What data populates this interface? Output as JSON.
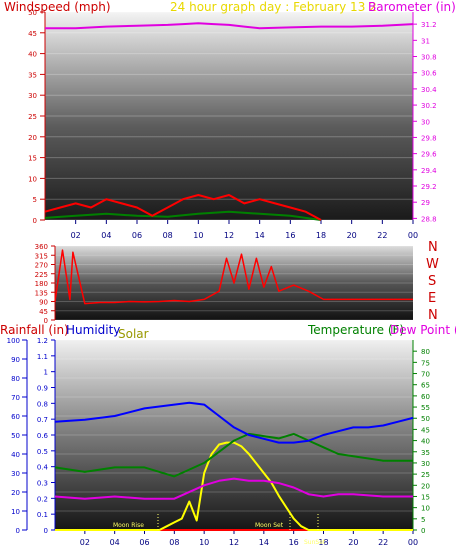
{
  "panel1": {
    "title_left": "Windspeed (mph)",
    "title_center": "24 hour graph day : February 13 2",
    "title_right": "Barometer (in)",
    "colors": {
      "wind": "#ff0000",
      "gust": "#008000",
      "baro": "#e000e0"
    }
  },
  "panel2": {
    "directions": [
      "N",
      "W",
      "S",
      "E",
      "N"
    ]
  },
  "panel3": {
    "title_rain": "Rainfall (in)",
    "title_hum": "Humidity",
    "title_solar": "Solar",
    "title_temp": "Temperature (F)",
    "title_dew": "Dew Point (",
    "moon_rise": "Moon Rise",
    "moon_set": "Moon Set",
    "sunset": "SunSet",
    "colors": {
      "humidity": "#0000ff",
      "temperature": "#008000",
      "dewpoint": "#e000e0",
      "solar": "#ffff00",
      "rain": "#ff0000"
    }
  },
  "chart_data": [
    {
      "type": "line",
      "title": "24 hour graph day : February 13 2",
      "xlabel": "",
      "ylabel": "Windspeed (mph)",
      "y2label": "Barometer (in)",
      "x_ticks": [
        "02",
        "04",
        "06",
        "08",
        "10",
        "12",
        "14",
        "16",
        "18",
        "20",
        "22",
        "00"
      ],
      "xlim": [
        0,
        24
      ],
      "ylim": [
        0,
        50
      ],
      "y_ticks": [
        0,
        5,
        10,
        15,
        20,
        25,
        30,
        35,
        40,
        45,
        50
      ],
      "y2lim": [
        28.78,
        31.35
      ],
      "y2_ticks": [
        "28.8",
        "29",
        "29.2",
        "29.4",
        "29.6",
        "29.8",
        "30",
        "30.2",
        "30.4",
        "30.6",
        "30.8",
        "31",
        "31.2"
      ],
      "series": [
        {
          "name": "Barometer",
          "axis": "y2",
          "x": [
            0,
            2,
            4,
            6,
            8,
            9,
            10,
            11,
            12,
            13,
            14,
            16,
            18,
            20,
            22,
            24
          ],
          "values": [
            31.15,
            31.15,
            31.17,
            31.18,
            31.19,
            31.2,
            31.21,
            31.2,
            31.19,
            31.17,
            31.15,
            31.16,
            31.17,
            31.17,
            31.18,
            31.2
          ]
        },
        {
          "name": "Windspeed",
          "axis": "y",
          "x": [
            0,
            1,
            2,
            3,
            4,
            5,
            6,
            7,
            8,
            9,
            10,
            11,
            12,
            13,
            14,
            15,
            16,
            17,
            18
          ],
          "values": [
            2,
            3,
            4,
            3,
            5,
            4,
            3,
            1,
            3,
            5,
            6,
            5,
            6,
            4,
            5,
            4,
            3,
            2,
            0
          ]
        },
        {
          "name": "Gust",
          "axis": "y",
          "x": [
            0,
            2,
            4,
            6,
            8,
            10,
            12,
            14,
            16,
            18
          ],
          "values": [
            0.5,
            1,
            1.5,
            1,
            0.8,
            1.5,
            2,
            1.5,
            1,
            0
          ]
        }
      ]
    },
    {
      "type": "line",
      "ylabel": "Wind direction",
      "xlim": [
        0,
        24
      ],
      "ylim": [
        0,
        360
      ],
      "y_ticks": [
        0,
        45,
        90,
        135,
        180,
        225,
        270,
        315,
        360
      ],
      "series": [
        {
          "name": "Wind direction",
          "x": [
            0,
            0.5,
            1,
            1.2,
            2,
            3,
            4,
            5,
            6,
            7,
            8,
            9,
            10,
            11,
            11.5,
            12,
            12.5,
            13,
            13.5,
            14,
            14.5,
            15,
            16,
            17,
            18,
            20,
            22,
            24
          ],
          "values": [
            90,
            340,
            100,
            330,
            80,
            85,
            85,
            90,
            88,
            90,
            95,
            90,
            100,
            140,
            300,
            180,
            320,
            150,
            300,
            160,
            260,
            140,
            170,
            140,
            100,
            100,
            100,
            100
          ]
        }
      ]
    },
    {
      "type": "line",
      "xlim": [
        0,
        24
      ],
      "x_ticks": [
        "02",
        "04",
        "06",
        "08",
        "10",
        "12",
        "14",
        "16",
        "18",
        "20",
        "22",
        "00"
      ],
      "ylim": [
        0,
        100
      ],
      "y_ticks": [
        0,
        10,
        20,
        30,
        40,
        50,
        60,
        70,
        80,
        90,
        100
      ],
      "y2lim": [
        0,
        1.2
      ],
      "y2_ticks": [
        "0",
        "0.1",
        "0.2",
        "0.3",
        "0.4",
        "0.5",
        "0.6",
        "0.7",
        "0.8",
        "0.9",
        "1",
        "1.1",
        "1.2"
      ],
      "y3lim": [
        0,
        85
      ],
      "y3_ticks": [
        0,
        5,
        10,
        15,
        20,
        25,
        30,
        35,
        40,
        45,
        50,
        55,
        60,
        65,
        70,
        75,
        80
      ],
      "series": [
        {
          "name": "Humidity",
          "axis": "y",
          "x": [
            0,
            2,
            4,
            6,
            8,
            9,
            10,
            11,
            12,
            13,
            14,
            15,
            16,
            17,
            18,
            19,
            20,
            21,
            22,
            23,
            24
          ],
          "values": [
            57,
            58,
            60,
            64,
            66,
            67,
            66,
            60,
            54,
            50,
            48,
            46,
            46,
            47,
            50,
            52,
            54,
            54,
            55,
            57,
            59
          ]
        },
        {
          "name": "Temperature",
          "axis": "y3",
          "x": [
            0,
            2,
            4,
            6,
            8,
            10,
            11,
            12,
            13,
            14,
            15,
            16,
            17,
            18,
            19,
            20,
            22,
            24
          ],
          "values": [
            28,
            26,
            28,
            28,
            24,
            30,
            35,
            40,
            43,
            42,
            41,
            43,
            40,
            37,
            34,
            33,
            31,
            31
          ]
        },
        {
          "name": "Dew Point",
          "axis": "y3",
          "x": [
            0,
            2,
            4,
            6,
            8,
            10,
            11,
            12,
            13,
            14,
            15,
            16,
            17,
            18,
            19,
            20,
            22,
            24
          ],
          "values": [
            15,
            14,
            15,
            14,
            14,
            20,
            22,
            23,
            22,
            22,
            21,
            19,
            16,
            15,
            16,
            16,
            15,
            15
          ]
        },
        {
          "name": "Solar",
          "axis": "y",
          "x": [
            0,
            7,
            7.5,
            8,
            8.5,
            9,
            9.5,
            10,
            10.5,
            11,
            11.5,
            12,
            12.5,
            13,
            13.5,
            14,
            14.5,
            15,
            15.5,
            16,
            16.5,
            17,
            18,
            24
          ],
          "values": [
            0,
            0,
            2,
            4,
            6,
            15,
            5,
            30,
            40,
            45,
            46,
            46,
            44,
            40,
            35,
            30,
            25,
            18,
            12,
            6,
            2,
            0,
            0,
            0
          ]
        },
        {
          "name": "Rainfall",
          "axis": "y2",
          "x": [
            0,
            24
          ],
          "values": [
            0,
            0
          ]
        }
      ]
    }
  ]
}
